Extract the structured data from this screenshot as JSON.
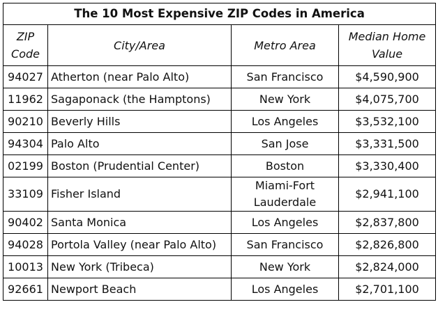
{
  "title": "The 10 Most Expensive ZIP Codes in America",
  "headers": {
    "zip": "ZIP Code",
    "city": "City/Area",
    "metro": "Metro Area",
    "value": "Median Home Value"
  },
  "rows": [
    {
      "zip": "94027",
      "city": "Atherton (near Palo Alto)",
      "metro": "San Francisco",
      "value": "$4,590,900"
    },
    {
      "zip": "11962",
      "city": "Sagaponack (the Hamptons)",
      "metro": "New York",
      "value": "$4,075,700"
    },
    {
      "zip": "90210",
      "city": "Beverly Hills",
      "metro": "Los Angeles",
      "value": "$3,532,100"
    },
    {
      "zip": "94304",
      "city": "Palo Alto",
      "metro": "San Jose",
      "value": "$3,331,500"
    },
    {
      "zip": "02199",
      "city": "Boston (Prudential Center)",
      "metro": "Boston",
      "value": "$3,330,400"
    },
    {
      "zip": "33109",
      "city": "Fisher Island",
      "metro": "Miami-Fort Lauderdale",
      "value": "$2,941,100"
    },
    {
      "zip": "90402",
      "city": "Santa Monica",
      "metro": "Los Angeles",
      "value": "$2,837,800"
    },
    {
      "zip": "94028",
      "city": "Portola Valley (near Palo Alto)",
      "metro": "San Francisco",
      "value": "$2,826,800"
    },
    {
      "zip": "10013",
      "city": "New York (Tribeca)",
      "metro": "New York",
      "value": "$2,824,000"
    },
    {
      "zip": "92661",
      "city": "Newport Beach",
      "metro": "Los Angeles",
      "value": "$2,701,100"
    }
  ]
}
